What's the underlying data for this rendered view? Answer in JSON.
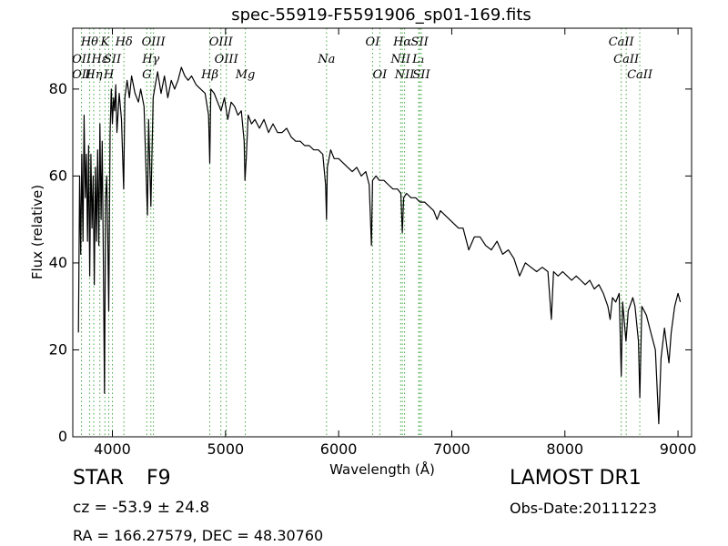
{
  "chart_data": {
    "type": "line",
    "title": "spec-55919-F5591906_sp01-169.fits",
    "xlabel": "Wavelength (Å)",
    "ylabel": "Flux (relative)",
    "xlim": [
      3650,
      9120
    ],
    "ylim": [
      0,
      94
    ],
    "xticks": [
      4000,
      5000,
      6000,
      7000,
      8000,
      9000
    ],
    "yticks": [
      0,
      20,
      40,
      60,
      80
    ],
    "grid": false,
    "line_color": "#000000",
    "marker_color": "#44aa44",
    "series": [
      {
        "values": [
          [
            3700,
            24
          ],
          [
            3710,
            60
          ],
          [
            3720,
            42
          ],
          [
            3730,
            65
          ],
          [
            3740,
            45
          ],
          [
            3750,
            74
          ],
          [
            3760,
            55
          ],
          [
            3770,
            65
          ],
          [
            3780,
            45
          ],
          [
            3790,
            67
          ],
          [
            3800,
            37
          ],
          [
            3810,
            65
          ],
          [
            3820,
            48
          ],
          [
            3830,
            60
          ],
          [
            3840,
            35
          ],
          [
            3850,
            62
          ],
          [
            3860,
            45
          ],
          [
            3870,
            66
          ],
          [
            3880,
            44
          ],
          [
            3890,
            72
          ],
          [
            3900,
            50
          ],
          [
            3910,
            68
          ],
          [
            3920,
            40
          ],
          [
            3930,
            10
          ],
          [
            3940,
            55
          ],
          [
            3950,
            60
          ],
          [
            3960,
            45
          ],
          [
            3968,
            29
          ],
          [
            3980,
            70
          ],
          [
            3990,
            80
          ],
          [
            4000,
            72
          ],
          [
            4010,
            78
          ],
          [
            4020,
            75
          ],
          [
            4030,
            81
          ],
          [
            4040,
            70
          ],
          [
            4060,
            79
          ],
          [
            4080,
            73
          ],
          [
            4100,
            57
          ],
          [
            4110,
            78
          ],
          [
            4130,
            82
          ],
          [
            4150,
            78
          ],
          [
            4170,
            83
          ],
          [
            4200,
            79
          ],
          [
            4230,
            77
          ],
          [
            4250,
            80
          ],
          [
            4280,
            76
          ],
          [
            4300,
            59
          ],
          [
            4310,
            51
          ],
          [
            4320,
            73
          ],
          [
            4340,
            53
          ],
          [
            4360,
            78
          ],
          [
            4380,
            81
          ],
          [
            4400,
            84
          ],
          [
            4430,
            79
          ],
          [
            4460,
            83
          ],
          [
            4490,
            78
          ],
          [
            4520,
            82
          ],
          [
            4550,
            80
          ],
          [
            4580,
            82
          ],
          [
            4610,
            85
          ],
          [
            4640,
            83
          ],
          [
            4670,
            82
          ],
          [
            4700,
            83
          ],
          [
            4740,
            81
          ],
          [
            4780,
            80
          ],
          [
            4820,
            79
          ],
          [
            4850,
            74
          ],
          [
            4861,
            63
          ],
          [
            4870,
            80
          ],
          [
            4900,
            79
          ],
          [
            4930,
            77
          ],
          [
            4960,
            75
          ],
          [
            4990,
            78
          ],
          [
            5020,
            73
          ],
          [
            5050,
            77
          ],
          [
            5080,
            76
          ],
          [
            5110,
            74
          ],
          [
            5140,
            75
          ],
          [
            5165,
            68
          ],
          [
            5172,
            59
          ],
          [
            5183,
            64
          ],
          [
            5200,
            74
          ],
          [
            5230,
            72
          ],
          [
            5260,
            73
          ],
          [
            5300,
            71
          ],
          [
            5340,
            73
          ],
          [
            5380,
            70
          ],
          [
            5420,
            72
          ],
          [
            5460,
            70
          ],
          [
            5500,
            70
          ],
          [
            5540,
            71
          ],
          [
            5580,
            69
          ],
          [
            5620,
            68
          ],
          [
            5660,
            68
          ],
          [
            5700,
            67
          ],
          [
            5740,
            67
          ],
          [
            5780,
            66
          ],
          [
            5820,
            66
          ],
          [
            5860,
            65
          ],
          [
            5885,
            58
          ],
          [
            5893,
            50
          ],
          [
            5900,
            62
          ],
          [
            5930,
            66
          ],
          [
            5960,
            64
          ],
          [
            6000,
            64
          ],
          [
            6040,
            63
          ],
          [
            6080,
            62
          ],
          [
            6120,
            61
          ],
          [
            6160,
            62
          ],
          [
            6200,
            60
          ],
          [
            6240,
            61
          ],
          [
            6270,
            58
          ],
          [
            6290,
            44
          ],
          [
            6300,
            59
          ],
          [
            6330,
            60
          ],
          [
            6360,
            59
          ],
          [
            6400,
            59
          ],
          [
            6440,
            58
          ],
          [
            6480,
            57
          ],
          [
            6520,
            57
          ],
          [
            6550,
            56
          ],
          [
            6563,
            47
          ],
          [
            6575,
            55
          ],
          [
            6600,
            56
          ],
          [
            6640,
            55
          ],
          [
            6680,
            55
          ],
          [
            6720,
            54
          ],
          [
            6760,
            54
          ],
          [
            6800,
            53
          ],
          [
            6840,
            52
          ],
          [
            6870,
            50
          ],
          [
            6900,
            52
          ],
          [
            6940,
            51
          ],
          [
            6980,
            50
          ],
          [
            7020,
            49
          ],
          [
            7060,
            48
          ],
          [
            7100,
            48
          ],
          [
            7150,
            43
          ],
          [
            7200,
            46
          ],
          [
            7250,
            46
          ],
          [
            7300,
            44
          ],
          [
            7350,
            43
          ],
          [
            7400,
            45
          ],
          [
            7450,
            42
          ],
          [
            7500,
            43
          ],
          [
            7550,
            41
          ],
          [
            7600,
            37
          ],
          [
            7650,
            40
          ],
          [
            7700,
            39
          ],
          [
            7750,
            38
          ],
          [
            7800,
            39
          ],
          [
            7850,
            38
          ],
          [
            7880,
            27
          ],
          [
            7900,
            38
          ],
          [
            7940,
            37
          ],
          [
            7980,
            38
          ],
          [
            8020,
            37
          ],
          [
            8060,
            36
          ],
          [
            8100,
            37
          ],
          [
            8140,
            36
          ],
          [
            8180,
            35
          ],
          [
            8220,
            36
          ],
          [
            8260,
            34
          ],
          [
            8300,
            35
          ],
          [
            8340,
            33
          ],
          [
            8380,
            30
          ],
          [
            8400,
            27
          ],
          [
            8420,
            32
          ],
          [
            8450,
            31
          ],
          [
            8480,
            33
          ],
          [
            8498,
            14
          ],
          [
            8510,
            31
          ],
          [
            8540,
            22
          ],
          [
            8560,
            29
          ],
          [
            8600,
            32
          ],
          [
            8620,
            30
          ],
          [
            8650,
            22
          ],
          [
            8662,
            9
          ],
          [
            8680,
            30
          ],
          [
            8720,
            28
          ],
          [
            8760,
            24
          ],
          [
            8800,
            20
          ],
          [
            8830,
            3
          ],
          [
            8850,
            18
          ],
          [
            8880,
            25
          ],
          [
            8920,
            17
          ],
          [
            8940,
            24
          ],
          [
            8970,
            30
          ],
          [
            9000,
            33
          ],
          [
            9020,
            31
          ]
        ]
      }
    ],
    "lines_upper": [
      {
        "label": "Hθ",
        "wave": 3798
      },
      {
        "label": "K",
        "wave": 3934
      },
      {
        "label": "Hδ",
        "wave": 4102
      },
      {
        "label": "OIII",
        "wave": 4363
      },
      {
        "label": "OIII",
        "wave": 4959
      },
      {
        "label": "OI",
        "wave": 6300
      },
      {
        "label": "Hα",
        "wave": 6563
      },
      {
        "label": "SII",
        "wave": 6716
      },
      {
        "label": "CaII",
        "wave": 8498
      }
    ],
    "lines_mid_upper": [
      {
        "label": "OII",
        "wave": 3727
      },
      {
        "label": "Hε",
        "wave": 3889
      },
      {
        "label": "SII",
        "wave": 4000
      },
      {
        "label": "Hγ",
        "wave": 4340
      },
      {
        "label": "OIII",
        "wave": 5007
      },
      {
        "label": "Na",
        "wave": 5893
      },
      {
        "label": "NII",
        "wave": 6548
      },
      {
        "label": "L₁",
        "wave": 6707
      },
      {
        "label": "CaII",
        "wave": 8542
      }
    ],
    "lines_mid_lower": [
      {
        "label": "OII",
        "wave": 3727
      },
      {
        "label": "Hη",
        "wave": 3835
      },
      {
        "label": "H",
        "wave": 3968
      },
      {
        "label": "G",
        "wave": 4304
      },
      {
        "label": "Hβ",
        "wave": 4861
      },
      {
        "label": "Mg",
        "wave": 5175
      },
      {
        "label": "OI",
        "wave": 6364
      },
      {
        "label": "NII",
        "wave": 6583
      },
      {
        "label": "SII",
        "wave": 6731
      },
      {
        "label": "CaII",
        "wave": 8662
      }
    ]
  },
  "info": {
    "object_class": "STAR",
    "subclass": "F9",
    "redshift": "cz = -53.9 ± 24.8",
    "coords": "RA = 166.27579, DEC = 48.30760",
    "survey": "LAMOST DR1",
    "obs_date": "Obs-Date:20111223"
  }
}
